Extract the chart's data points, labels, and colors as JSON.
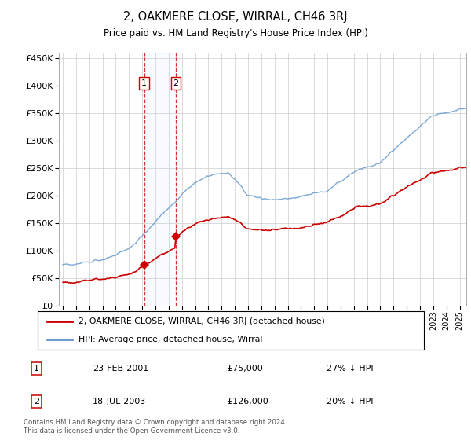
{
  "title": "2, OAKMERE CLOSE, WIRRAL, CH46 3RJ",
  "subtitle": "Price paid vs. HM Land Registry's House Price Index (HPI)",
  "transactions": [
    {
      "date_num": 2001.14,
      "price": 75000,
      "label": "1",
      "date_str": "23-FEB-2001",
      "pct": "27% ↓ HPI"
    },
    {
      "date_num": 2003.54,
      "price": 126000,
      "label": "2",
      "date_str": "18-JUL-2003",
      "pct": "20% ↓ HPI"
    }
  ],
  "legend_property": "2, OAKMERE CLOSE, WIRRAL, CH46 3RJ (detached house)",
  "legend_hpi": "HPI: Average price, detached house, Wirral",
  "footer": "Contains HM Land Registry data © Crown copyright and database right 2024.\nThis data is licensed under the Open Government Licence v3.0.",
  "property_color": "#cc0000",
  "hpi_color": "#6699cc",
  "highlight_color": "#ddeeff",
  "ylim": [
    0,
    460000
  ],
  "yticks": [
    0,
    50000,
    100000,
    150000,
    200000,
    250000,
    300000,
    350000,
    400000,
    450000
  ],
  "xlim_start": 1994.7,
  "xlim_end": 2025.5
}
